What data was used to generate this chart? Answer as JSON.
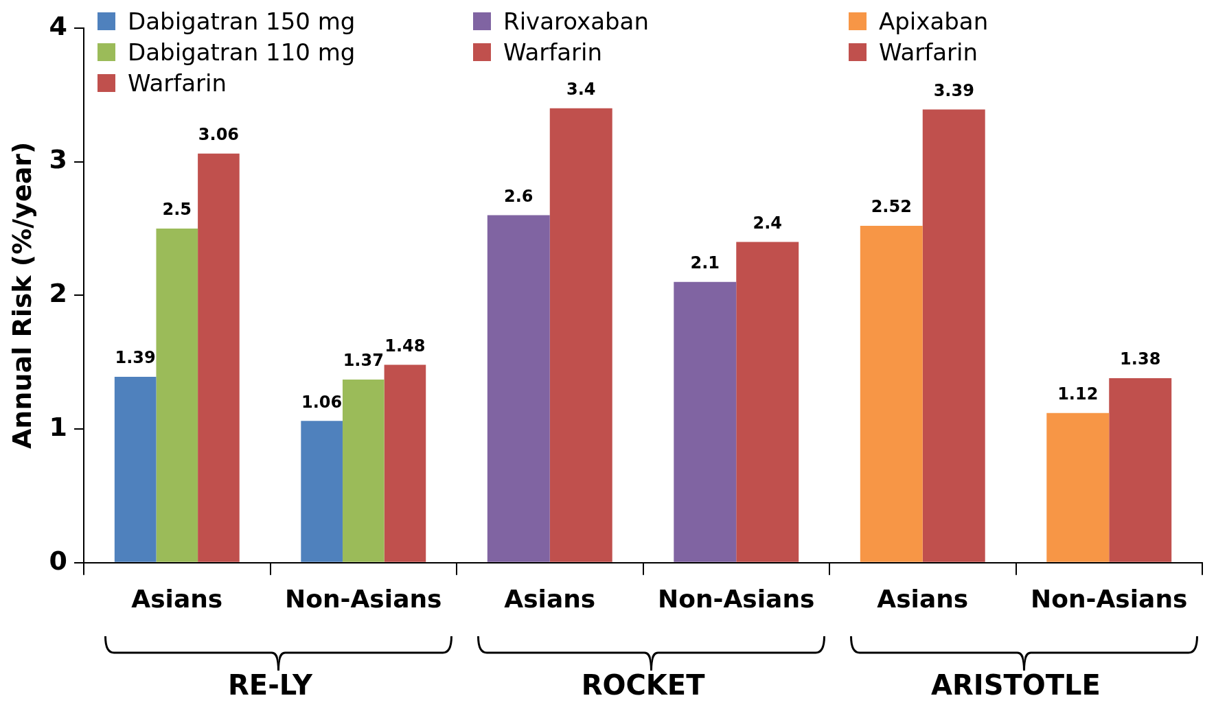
{
  "chart_data": {
    "type": "bar",
    "ylabel": "Annual Risk (%/year)",
    "categories": [
      "Asians",
      "Non-Asians",
      "Asians",
      "Non-Asians",
      "Asians",
      "Non-Asians"
    ],
    "series": [
      {
        "name": "Dabigatran 150 mg",
        "color": "#4f81bd",
        "values": [
          1.39,
          1.06,
          null,
          null,
          null,
          null
        ]
      },
      {
        "name": "Dabigatran 110 mg",
        "color": "#9bbb59",
        "values": [
          2.5,
          1.37,
          null,
          null,
          null,
          null
        ]
      },
      {
        "name": "Warfarin",
        "color": "#c0504d",
        "values": [
          3.06,
          1.48,
          null,
          null,
          null,
          null
        ]
      },
      {
        "name": "Rivaroxaban",
        "color": "#8064a2",
        "values": [
          null,
          null,
          2.6,
          2.1,
          null,
          null
        ]
      },
      {
        "name": "Warfarin",
        "color": "#c0504d",
        "values": [
          null,
          null,
          3.4,
          2.4,
          null,
          null
        ]
      },
      {
        "name": "Apixaban",
        "color": "#f79646",
        "values": [
          null,
          null,
          null,
          null,
          2.52,
          1.12
        ]
      },
      {
        "name": "Warfarin",
        "color": "#c0504d",
        "values": [
          null,
          null,
          null,
          null,
          3.39,
          1.38
        ]
      }
    ],
    "ylim": [
      0,
      4
    ],
    "yticks": [
      0,
      1,
      2,
      3,
      4
    ],
    "grid": false,
    "legend": "top",
    "data_labels": true,
    "annotations": [
      "RE-LY",
      "ROCKET",
      "ARISTOTLE"
    ]
  }
}
